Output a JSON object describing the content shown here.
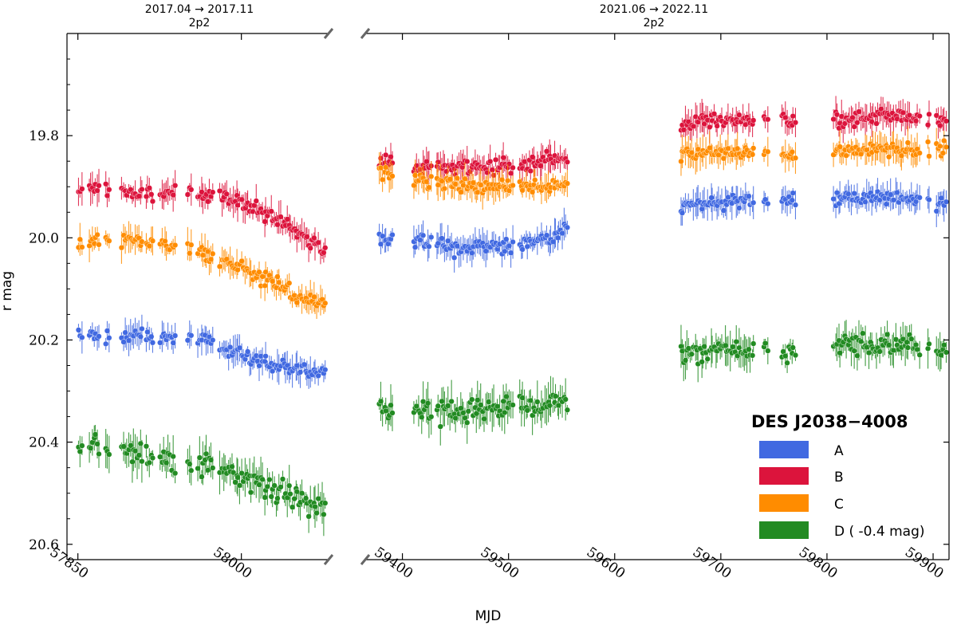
{
  "chart_data": {
    "type": "scatter",
    "title": "DES J2038−4008",
    "xlabel": "MJD",
    "ylabel": "r mag",
    "y_inverted": true,
    "ylim": [
      20.63,
      19.6
    ],
    "yticks": [
      19.8,
      20.0,
      20.2,
      20.4,
      20.6
    ],
    "ytick_labels": [
      "19.8",
      "20.0",
      "20.2",
      "20.4",
      "20.6"
    ],
    "broken_axis": true,
    "panels": [
      {
        "period_label": "2017.04 → 2017.11",
        "period_sublabel": "2p2",
        "xlim": [
          57840,
          58080
        ],
        "xticks": [
          57850,
          58000
        ],
        "xtick_labels": [
          "57850",
          "58000"
        ]
      },
      {
        "period_label": "2021.06 → 2022.11",
        "period_sublabel": "2p2",
        "xlim": [
          59365,
          59915
        ],
        "xticks": [
          59400,
          59500,
          59600,
          59700,
          59800,
          59900
        ],
        "xtick_labels": [
          "59400",
          "59500",
          "59600",
          "59700",
          "59800",
          "59900"
        ]
      }
    ],
    "series": [
      {
        "name": "A",
        "legend_label": "A",
        "color": "#4169e1",
        "keypoints": [
          [
            [
              57850,
              20.19
            ],
            [
              57900,
              20.19
            ],
            [
              57960,
              20.2
            ],
            [
              57990,
              20.22
            ],
            [
              58020,
              20.24
            ],
            [
              58050,
              20.26
            ],
            [
              58075,
              20.27
            ]
          ],
          [
            [
              59380,
              20.01
            ],
            [
              59400,
              20.0
            ],
            [
              59450,
              20.02
            ],
            [
              59500,
              20.02
            ],
            [
              59540,
              20.0
            ],
            [
              59555,
              19.98
            ],
            [
              59660,
              19.94
            ],
            [
              59700,
              19.93
            ],
            [
              59780,
              19.93
            ],
            [
              59820,
              19.92
            ],
            [
              59860,
              19.92
            ],
            [
              59910,
              19.93
            ]
          ]
        ]
      },
      {
        "name": "B",
        "legend_label": "B",
        "color": "#dc143c",
        "keypoints": [
          [
            [
              57850,
              19.9
            ],
            [
              57900,
              19.91
            ],
            [
              57950,
              19.91
            ],
            [
              57990,
              19.92
            ],
            [
              58020,
              19.95
            ],
            [
              58050,
              19.99
            ],
            [
              58075,
              20.02
            ]
          ],
          [
            [
              59380,
              19.85
            ],
            [
              59420,
              19.86
            ],
            [
              59460,
              19.86
            ],
            [
              59500,
              19.86
            ],
            [
              59530,
              19.85
            ],
            [
              59555,
              19.85
            ],
            [
              59660,
              19.78
            ],
            [
              59700,
              19.77
            ],
            [
              59780,
              19.77
            ],
            [
              59820,
              19.77
            ],
            [
              59860,
              19.76
            ],
            [
              59910,
              19.77
            ]
          ]
        ]
      },
      {
        "name": "C",
        "legend_label": "C",
        "color": "#ff8c00",
        "keypoints": [
          [
            [
              57850,
              20.01
            ],
            [
              57900,
              20.0
            ],
            [
              57950,
              20.02
            ],
            [
              57990,
              20.05
            ],
            [
              58020,
              20.08
            ],
            [
              58050,
              20.11
            ],
            [
              58075,
              20.13
            ]
          ],
          [
            [
              59380,
              19.87
            ],
            [
              59420,
              19.89
            ],
            [
              59460,
              19.9
            ],
            [
              59500,
              19.9
            ],
            [
              59530,
              19.9
            ],
            [
              59555,
              19.89
            ],
            [
              59660,
              19.84
            ],
            [
              59700,
              19.83
            ],
            [
              59780,
              19.84
            ],
            [
              59820,
              19.83
            ],
            [
              59860,
              19.83
            ],
            [
              59910,
              19.83
            ]
          ]
        ]
      },
      {
        "name": "D",
        "legend_label": "D ( -0.4 mag)",
        "color": "#228b22",
        "keypoints": [
          [
            [
              57850,
              20.4
            ],
            [
              57900,
              20.42
            ],
            [
              57950,
              20.44
            ],
            [
              57990,
              20.46
            ],
            [
              58020,
              20.48
            ],
            [
              58050,
              20.51
            ],
            [
              58075,
              20.54
            ]
          ],
          [
            [
              59380,
              20.33
            ],
            [
              59420,
              20.34
            ],
            [
              59460,
              20.34
            ],
            [
              59500,
              20.33
            ],
            [
              59530,
              20.33
            ],
            [
              59555,
              20.32
            ],
            [
              59660,
              20.23
            ],
            [
              59700,
              20.22
            ],
            [
              59780,
              20.22
            ],
            [
              59820,
              20.21
            ],
            [
              59860,
              20.21
            ],
            [
              59910,
              20.22
            ]
          ]
        ]
      }
    ],
    "observing_windows": [
      [
        [
          57850,
          57855
        ],
        [
          57860,
          57870
        ],
        [
          57875,
          57880
        ],
        [
          57890,
          57910
        ],
        [
          57912,
          57920
        ],
        [
          57925,
          57940
        ],
        [
          57950,
          57955
        ],
        [
          57960,
          57975
        ],
        [
          57980,
          58078
        ]
      ],
      [
        [
          59378,
          59392
        ],
        [
          59410,
          59428
        ],
        [
          59432,
          59505
        ],
        [
          59510,
          59556
        ],
        [
          59662,
          59732
        ],
        [
          59740,
          59745
        ],
        [
          59757,
          59771
        ],
        [
          59806,
          59888
        ],
        [
          59895,
          59897
        ],
        [
          59903,
          59913
        ]
      ]
    ],
    "legend_position": "lower-right"
  }
}
